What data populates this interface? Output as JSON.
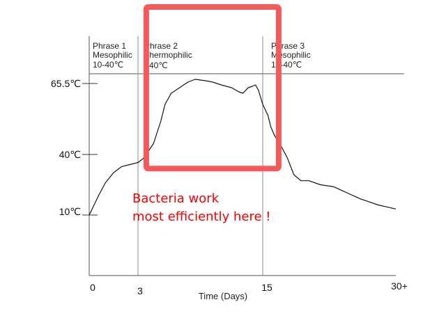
{
  "chart_data": {
    "type": "line",
    "xlabel": "Time (Days)",
    "ylabel": "",
    "x_ticks": [
      "0",
      "3",
      "15",
      "30+"
    ],
    "y_ticks": [
      "10℃",
      "40℃",
      "65.5℃"
    ],
    "phases": [
      {
        "name": "Phrase 1",
        "kind": "Mesophilic",
        "range": "10-40℃"
      },
      {
        "name": "Phrase 2",
        "kind": "Thermophilic",
        "range": ">40℃"
      },
      {
        "name": "Phrase 3",
        "kind": "Mesophilic",
        "range": "10-40℃"
      }
    ],
    "series": [
      {
        "x": [
          0,
          0.3,
          0.6,
          1,
          1.5,
          2,
          2.5,
          3,
          3.5,
          3.8,
          4.5,
          5.2,
          5.6,
          6.2,
          7,
          7.8,
          8.5,
          9.5,
          10.2,
          11,
          12,
          12.7,
          13.1,
          13.6,
          14,
          14.3,
          14.6,
          15,
          15.3,
          15.6,
          15.9,
          16.3,
          16.9,
          17.4,
          17.8,
          18.5,
          19.3,
          20.2,
          21.5,
          23,
          24,
          25,
          26,
          27,
          28,
          29,
          30
        ],
        "y": [
          10,
          15,
          20,
          26,
          31,
          34,
          35,
          36,
          38,
          40,
          44,
          52,
          58,
          62,
          64,
          66,
          67,
          66.5,
          66,
          65,
          64,
          62.5,
          62,
          64,
          64.5,
          65,
          63,
          58,
          56,
          54,
          50,
          47,
          44,
          41,
          38,
          30,
          27,
          27,
          25,
          24,
          22,
          20,
          18,
          16.5,
          15,
          14,
          13
        ]
      }
    ],
    "xlim": [
      0,
      30
    ],
    "ylim": [
      -10,
      75
    ],
    "highlight": {
      "x_range": [
        3.8,
        16.8
      ],
      "y_range": [
        33,
        93
      ],
      "color": "#f35a5a"
    },
    "annotation": {
      "lines": [
        "Bacteria work",
        "most efficiently here !"
      ],
      "color": "#f00000"
    },
    "grid": false
  }
}
